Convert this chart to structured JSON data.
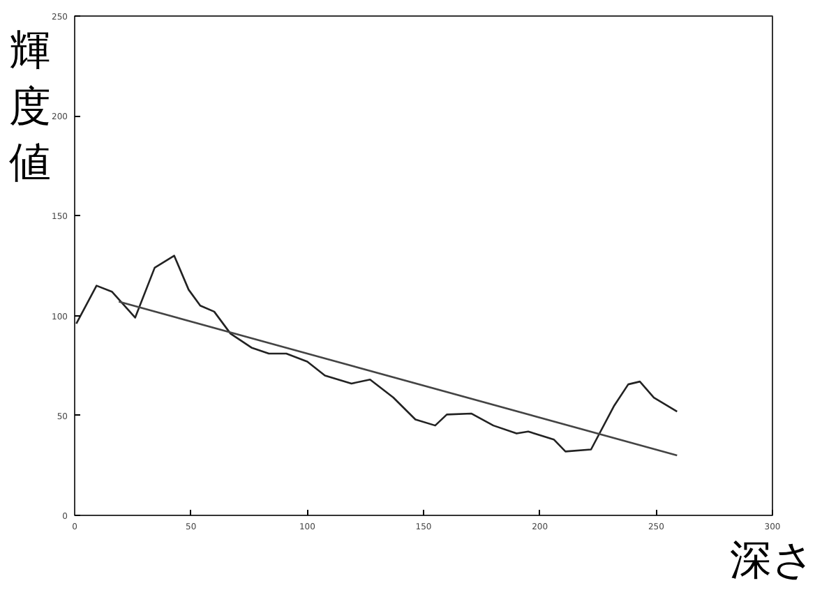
{
  "chart_data": {
    "type": "line",
    "xlabel": "深さ",
    "ylabel": "輝度値",
    "xlim": [
      0,
      300
    ],
    "ylim": [
      0,
      250
    ],
    "xticks": [
      0,
      50,
      100,
      150,
      200,
      250,
      300
    ],
    "yticks": [
      0,
      50,
      100,
      150,
      200,
      250
    ],
    "grid": false,
    "series": [
      {
        "color": "#222222",
        "x": [
          0.7,
          9.4,
          16,
          26,
          34.4,
          42.8,
          49,
          54,
          60,
          67,
          76,
          83.5,
          91,
          100,
          107.6,
          119,
          127,
          137,
          146.5,
          155,
          160,
          170.5,
          180,
          190,
          195,
          206,
          211,
          222,
          232,
          238,
          243,
          249,
          259
        ],
        "values": [
          96,
          115,
          112,
          99,
          124,
          130,
          113,
          105,
          102,
          91,
          84,
          81,
          81,
          77,
          70,
          66,
          68,
          59,
          48,
          45,
          50.5,
          51,
          45,
          41,
          42,
          38,
          32,
          33,
          55,
          65.6,
          67,
          59,
          52
        ]
      },
      {
        "color": "#444444",
        "x": [
          19,
          259
        ],
        "values": [
          107,
          30
        ]
      }
    ]
  }
}
